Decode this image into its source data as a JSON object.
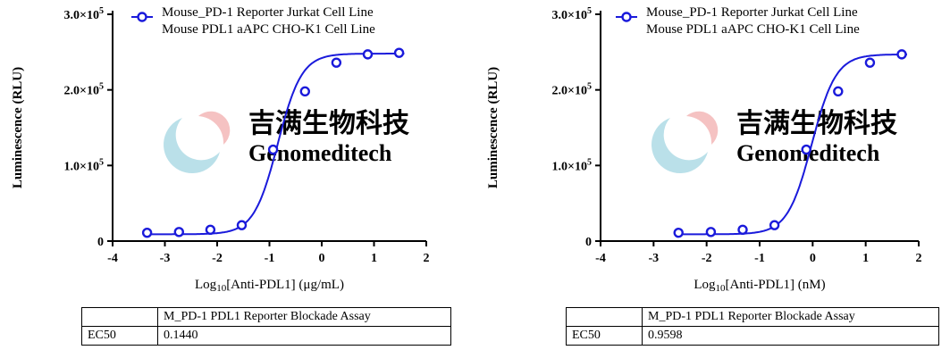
{
  "watermark": {
    "cn": "吉满生物科技",
    "en": "Genomeditech"
  },
  "chart_data": [
    {
      "type": "line",
      "title": "",
      "xlabel_main": "Log",
      "xlabel_sub": "10",
      "xlabel_rest": "[Anti-PDL1] (μg/mL)",
      "ylabel": "Luminescence (RLU)",
      "xlim": [
        -4,
        2
      ],
      "ylim": [
        0,
        300000
      ],
      "x_ticks": [
        "-4",
        "-3",
        "-2",
        "-1",
        "0",
        "1",
        "2"
      ],
      "y_ticks": [
        {
          "value": 0,
          "mantissa": "0",
          "exp": ""
        },
        {
          "value": 100000,
          "mantissa": "1.0×10",
          "exp": "5"
        },
        {
          "value": 200000,
          "mantissa": "2.0×10",
          "exp": "5"
        },
        {
          "value": 300000,
          "mantissa": "3.0×10",
          "exp": "5"
        }
      ],
      "legend": [
        "Mouse_PD-1 Reporter Jurkat Cell Line",
        "Mouse PDL1 aAPC CHO-K1 Cell Line"
      ],
      "legend_position": "top",
      "color": "#1a1adb",
      "series": [
        {
          "x": [
            -3.34,
            -2.73,
            -2.13,
            -1.53,
            -0.93,
            -0.32,
            0.28,
            0.88,
            1.48
          ],
          "y": [
            11000,
            12000,
            15000,
            21000,
            121000,
            198000,
            236000,
            247000,
            249000
          ]
        }
      ],
      "fit": {
        "bottom": 9000,
        "top": 248000,
        "log_ec50": -0.8416,
        "hill": 1.9
      },
      "table": {
        "header": "M_PD-1 PDL1 Reporter Blockade Assay",
        "row_label": "EC50",
        "row_value": "0.1440"
      }
    },
    {
      "type": "line",
      "title": "",
      "xlabel_main": "Log",
      "xlabel_sub": "10",
      "xlabel_rest": "[Anti-PDL1] (nM)",
      "ylabel": "Luminescence (RLU)",
      "xlim": [
        -4,
        2
      ],
      "ylim": [
        0,
        300000
      ],
      "x_ticks": [
        "-4",
        "-3",
        "-2",
        "-1",
        "0",
        "1",
        "2"
      ],
      "y_ticks": [
        {
          "value": 0,
          "mantissa": "0",
          "exp": ""
        },
        {
          "value": 100000,
          "mantissa": "1.0×10",
          "exp": "5"
        },
        {
          "value": 200000,
          "mantissa": "2.0×10",
          "exp": "5"
        },
        {
          "value": 300000,
          "mantissa": "3.0×10",
          "exp": "5"
        }
      ],
      "legend": [
        "Mouse_PD-1 Reporter Jurkat Cell Line",
        "Mouse PDL1 aAPC CHO-K1 Cell Line"
      ],
      "legend_position": "top",
      "color": "#1a1adb",
      "series": [
        {
          "x": [
            -2.53,
            -1.92,
            -1.32,
            -0.72,
            -0.12,
            0.48,
            1.08,
            1.68
          ],
          "y": [
            11000,
            12000,
            15000,
            21000,
            121000,
            198000,
            236000,
            247000
          ]
        }
      ],
      "fit": {
        "bottom": 9000,
        "top": 247000,
        "log_ec50": -0.0178,
        "hill": 1.9
      },
      "table": {
        "header": "M_PD-1 PDL1 Reporter Blockade Assay",
        "row_label": "EC50",
        "row_value": "0.9598"
      }
    }
  ]
}
